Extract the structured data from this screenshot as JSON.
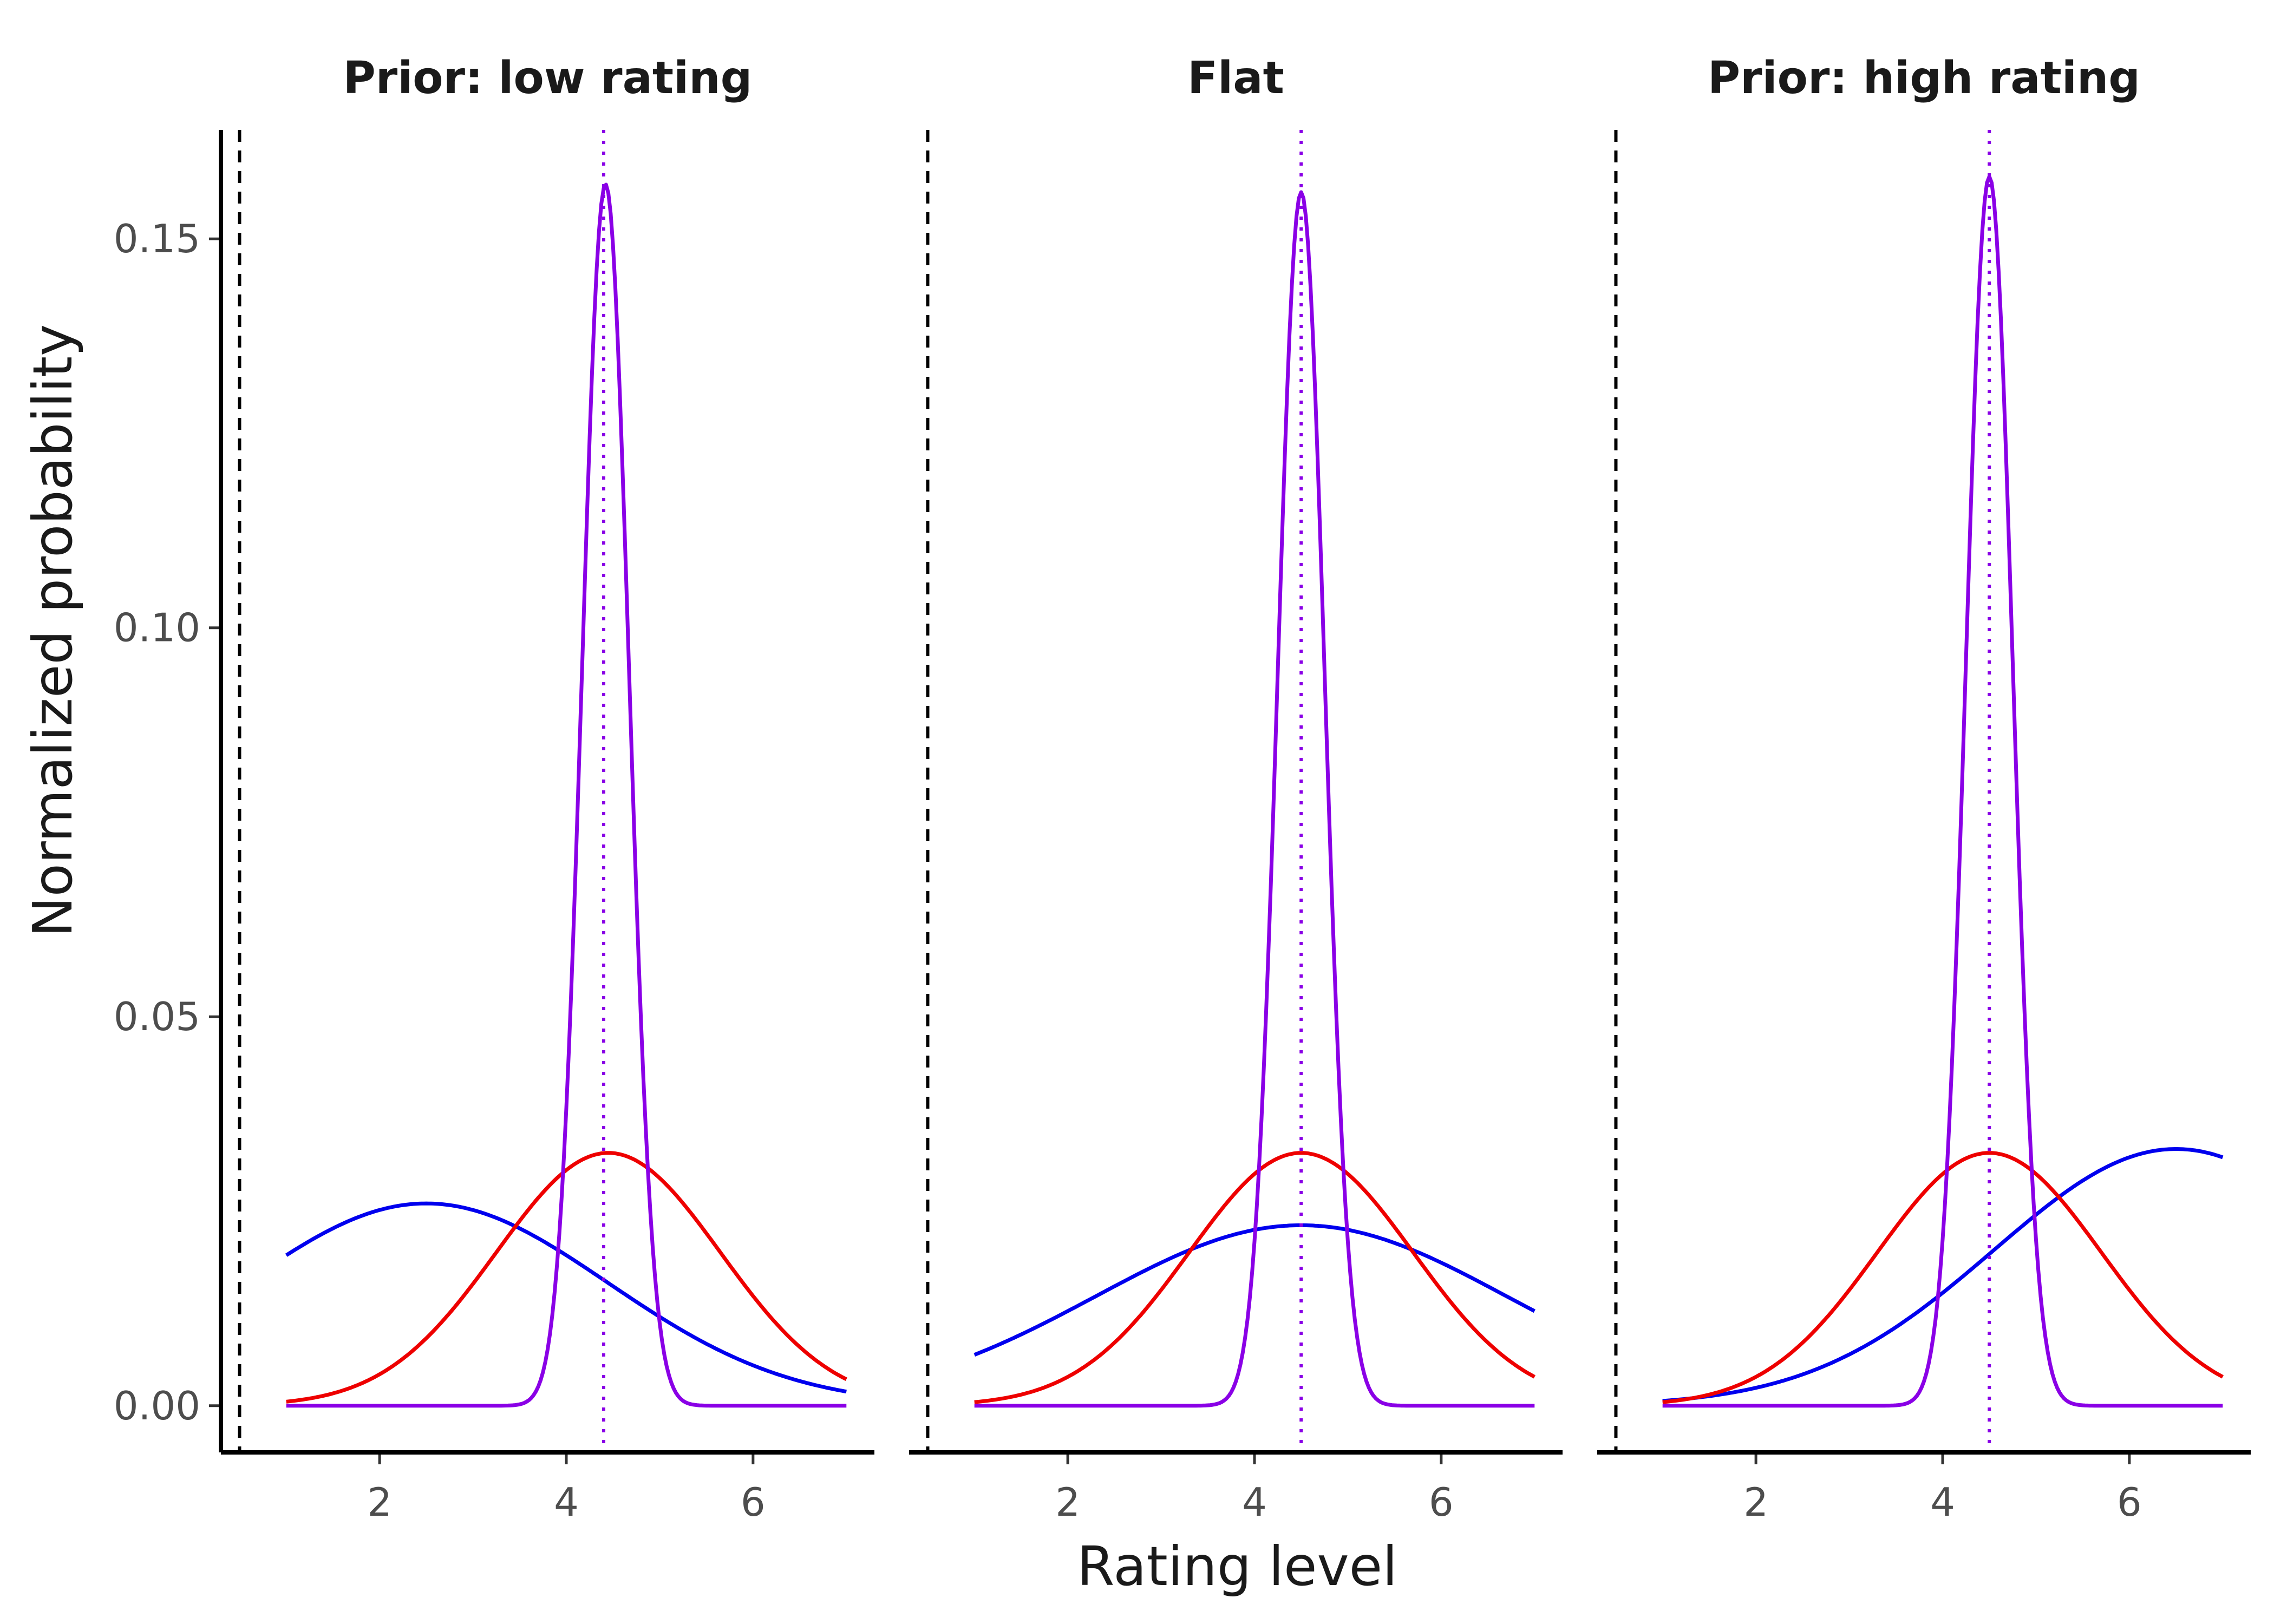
{
  "chart_data": {
    "type": "line",
    "facet_count": 3,
    "xlabel": "Rating level",
    "ylabel": "Normalized probability",
    "xlim": [
      0.3,
      7.3
    ],
    "ylim": [
      -0.006,
      0.164
    ],
    "xticks": [
      2,
      4,
      6
    ],
    "yticks": [
      0.0,
      0.05,
      0.1,
      0.15
    ],
    "ytick_labels": [
      "0.00",
      "0.05",
      "0.10",
      "0.15"
    ],
    "reference_x": 0.5,
    "grid": false,
    "legend": "none",
    "colors": {
      "prior": "#0000ee",
      "likelihood": "#ee0000",
      "posterior": "#8a00e6",
      "reference": "#000000"
    },
    "panels": [
      {
        "title": "Prior: low rating",
        "posterior_mean": 4.4,
        "series": [
          {
            "color": "#0000ee",
            "curve": "gaussian",
            "x_range": [
              1,
              7
            ],
            "mu": 2.5,
            "sigma": 1.95,
            "peak": 0.026
          },
          {
            "color": "#ee0000",
            "curve": "gaussian",
            "x_range": [
              1,
              7
            ],
            "mu": 4.45,
            "sigma": 1.2,
            "peak": 0.0325
          },
          {
            "color": "#8a00e6",
            "curve": "gaussian",
            "x_range": [
              1,
              7
            ],
            "mu": 4.42,
            "sigma": 0.25,
            "peak": 0.157
          }
        ]
      },
      {
        "title": "Flat",
        "posterior_mean": 4.5,
        "series": [
          {
            "color": "#0000ee",
            "curve": "gaussian",
            "x_range": [
              1,
              7
            ],
            "mu": 4.5,
            "sigma": 2.2,
            "peak": 0.0232
          },
          {
            "color": "#ee0000",
            "curve": "gaussian",
            "x_range": [
              1,
              7
            ],
            "mu": 4.5,
            "sigma": 1.2,
            "peak": 0.0325
          },
          {
            "color": "#8a00e6",
            "curve": "gaussian",
            "x_range": [
              1,
              7
            ],
            "mu": 4.5,
            "sigma": 0.25,
            "peak": 0.156
          }
        ]
      },
      {
        "title": "Prior: high rating",
        "posterior_mean": 4.5,
        "series": [
          {
            "color": "#0000ee",
            "curve": "gaussian",
            "x_range": [
              1,
              7
            ],
            "mu": 6.5,
            "sigma": 1.95,
            "peak": 0.033
          },
          {
            "color": "#ee0000",
            "curve": "gaussian",
            "x_range": [
              1,
              7
            ],
            "mu": 4.5,
            "sigma": 1.2,
            "peak": 0.0325
          },
          {
            "color": "#8a00e6",
            "curve": "gaussian",
            "x_range": [
              1,
              7
            ],
            "mu": 4.5,
            "sigma": 0.25,
            "peak": 0.158
          }
        ]
      }
    ]
  }
}
